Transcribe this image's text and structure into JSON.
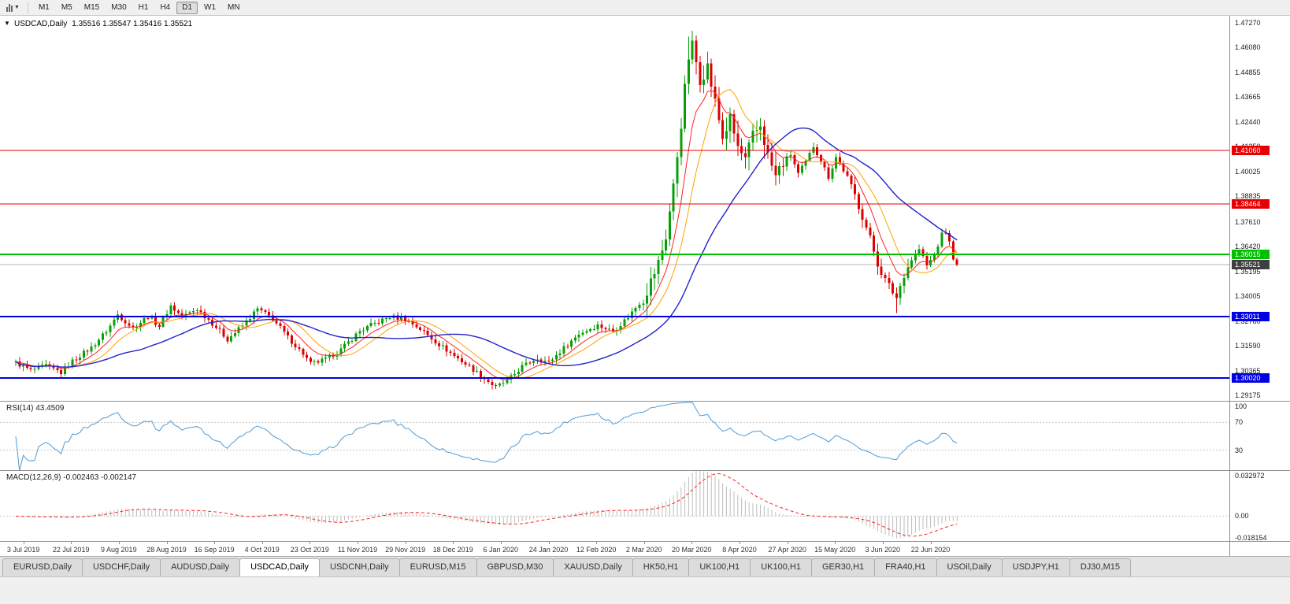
{
  "toolbar": {
    "timeframes": [
      "M1",
      "M5",
      "M15",
      "M30",
      "H1",
      "H4",
      "D1",
      "W1",
      "MN"
    ],
    "active_timeframe": "D1"
  },
  "chart": {
    "header": {
      "symbol_period": "USDCAD,Daily",
      "ohlc": "1.35516 1.35547 1.35416 1.35521"
    },
    "type": "candlestick",
    "y_max": 1.476,
    "y_min": 1.2888,
    "price_ticks": [
      "1.47270",
      "1.46080",
      "1.44855",
      "1.43665",
      "1.42440",
      "1.41250",
      "1.40025",
      "1.38835",
      "1.37610",
      "1.36420",
      "1.35195",
      "1.34005",
      "1.32780",
      "1.31590",
      "1.30365",
      "1.29175"
    ],
    "hlines": [
      {
        "value": 1.4106,
        "label": "1.41060",
        "color": "#e60000",
        "width": 1
      },
      {
        "value": 1.38464,
        "label": "1.38464",
        "color": "#e60000",
        "width": 1
      },
      {
        "value": 1.36015,
        "label": "1.36015",
        "color": "#00c000",
        "width": 2
      },
      {
        "value": 1.33011,
        "label": "1.33011",
        "color": "#0000e0",
        "width": 2
      },
      {
        "value": 1.3002,
        "label": "1.30020",
        "color": "#0000e0",
        "width": 2
      }
    ],
    "current_price": {
      "value": 1.35521,
      "label": "1.35521",
      "badge_color": "#3f3f3f",
      "line_color": "#b6b6b6"
    },
    "colors": {
      "up": "#089f08",
      "down": "#dd0000",
      "background": "#ffffff"
    },
    "ma_lines": [
      {
        "name": "fast-ma",
        "period": 8,
        "method": "ema",
        "color": "#ff2020",
        "width": 1
      },
      {
        "name": "mid-ma",
        "period": 13,
        "method": "sma",
        "color": "#ffa200",
        "width": 1
      },
      {
        "name": "slow-ma",
        "period": 34,
        "method": "sma",
        "color": "#2222cc",
        "width": 1.4
      }
    ],
    "candles": {
      "count": 250,
      "vol_base": 0.0021,
      "vol_zones": [
        [
          166,
          203,
          3.0
        ],
        [
          222,
          236,
          1.8
        ]
      ],
      "keyframes": [
        [
          0,
          1.3075
        ],
        [
          4,
          1.304
        ],
        [
          8,
          1.3062
        ],
        [
          12,
          1.3028
        ],
        [
          15,
          1.3085
        ],
        [
          20,
          1.315
        ],
        [
          24,
          1.323
        ],
        [
          27,
          1.331
        ],
        [
          31,
          1.3245
        ],
        [
          35,
          1.3302
        ],
        [
          38,
          1.3256
        ],
        [
          41,
          1.3352
        ],
        [
          44,
          1.33
        ],
        [
          48,
          1.3338
        ],
        [
          53,
          1.325
        ],
        [
          56,
          1.319
        ],
        [
          60,
          1.3256
        ],
        [
          64,
          1.3338
        ],
        [
          68,
          1.329
        ],
        [
          72,
          1.32
        ],
        [
          76,
          1.312
        ],
        [
          78,
          1.3072
        ],
        [
          82,
          1.3092
        ],
        [
          86,
          1.314
        ],
        [
          91,
          1.323
        ],
        [
          95,
          1.3268
        ],
        [
          99,
          1.33
        ],
        [
          103,
          1.3288
        ],
        [
          107,
          1.324
        ],
        [
          111,
          1.318
        ],
        [
          116,
          1.311
        ],
        [
          120,
          1.3058
        ],
        [
          124,
          1.3
        ],
        [
          127,
          1.2958
        ],
        [
          130,
          1.2988
        ],
        [
          134,
          1.3058
        ],
        [
          138,
          1.31
        ],
        [
          141,
          1.3078
        ],
        [
          145,
          1.3148
        ],
        [
          149,
          1.3218
        ],
        [
          154,
          1.3258
        ],
        [
          158,
          1.323
        ],
        [
          162,
          1.33
        ],
        [
          166,
          1.339
        ],
        [
          168,
          1.347
        ],
        [
          170,
          1.356
        ],
        [
          172,
          1.369
        ],
        [
          174,
          1.393
        ],
        [
          176,
          1.424
        ],
        [
          178,
          1.456
        ],
        [
          179,
          1.4615
        ],
        [
          181,
          1.4455
        ],
        [
          183,
          1.4515
        ],
        [
          185,
          1.434
        ],
        [
          187,
          1.417
        ],
        [
          189,
          1.4255
        ],
        [
          191,
          1.412
        ],
        [
          193,
          1.4055
        ],
        [
          195,
          1.4175
        ],
        [
          197,
          1.423
        ],
        [
          199,
          1.408
        ],
        [
          201,
          1.398
        ],
        [
          203,
          1.4048
        ],
        [
          205,
          1.4088
        ],
        [
          207,
          1.3992
        ],
        [
          209,
          1.405
        ],
        [
          211,
          1.4128
        ],
        [
          213,
          1.4058
        ],
        [
          215,
          1.3978
        ],
        [
          217,
          1.4075
        ],
        [
          220,
          1.3978
        ],
        [
          222,
          1.3888
        ],
        [
          224,
          1.3788
        ],
        [
          226,
          1.3678
        ],
        [
          228,
          1.3558
        ],
        [
          230,
          1.3478
        ],
        [
          232,
          1.342
        ],
        [
          233,
          1.3392
        ],
        [
          235,
          1.3508
        ],
        [
          237,
          1.3578
        ],
        [
          239,
          1.3628
        ],
        [
          241,
          1.3548
        ],
        [
          243,
          1.3598
        ],
        [
          245,
          1.3698
        ],
        [
          246,
          1.3712
        ],
        [
          247,
          1.3658
        ],
        [
          248,
          1.3588
        ],
        [
          249,
          1.3552
        ]
      ],
      "wick_overrides": [
        {
          "i": 127,
          "low": 1.2949
        },
        {
          "i": 178,
          "high": 1.4658
        },
        {
          "i": 179,
          "high": 1.4688
        },
        {
          "i": 233,
          "low": 1.3318
        }
      ]
    }
  },
  "rsi": {
    "label": "RSI(14) 43.4509",
    "period": 14,
    "levels": [
      70,
      30
    ],
    "axis_labels": [
      "100",
      "70",
      "30"
    ],
    "line_color": "#4f9bd5",
    "level_color": "#c8c8c8"
  },
  "macd": {
    "label": "MACD(12,26,9) -0.002463 -0.002147",
    "fast": 12,
    "slow": 26,
    "signal": 9,
    "axis_labels": [
      {
        "text": "0.032972",
        "value": 0.032972
      },
      {
        "text": "0.00",
        "value": 0
      },
      {
        "text": "-0.018154",
        "value": -0.018154
      }
    ],
    "range": {
      "max": 0.0335,
      "min": -0.019
    },
    "hist_color": "#bdbdbd",
    "signal_color": "#ff2020",
    "zero_color": "#c8c8c8"
  },
  "time_axis": {
    "labels": [
      "3 Jul 2019",
      "22 Jul 2019",
      "9 Aug 2019",
      "28 Aug 2019",
      "16 Sep 2019",
      "4 Oct 2019",
      "23 Oct 2019",
      "11 Nov 2019",
      "29 Nov 2019",
      "18 Dec 2019",
      "6 Jan 2020",
      "24 Jan 2020",
      "12 Feb 2020",
      "2 Mar 2020",
      "20 Mar 2020",
      "8 Apr 2020",
      "27 Apr 2020",
      "15 May 2020",
      "3 Jun 2020",
      "22 Jun 2020"
    ]
  },
  "tabs": {
    "active_index": 3,
    "items": [
      "EURUSD,Daily",
      "USDCHF,Daily",
      "AUDUSD,Daily",
      "USDCAD,Daily",
      "USDCNH,Daily",
      "EURUSD,M15",
      "GBPUSD,M30",
      "XAUUSD,Daily",
      "HK50,H1",
      "UK100,H1",
      "UK100,H1",
      "GER30,H1",
      "FRA40,H1",
      "USOil,Daily",
      "USDJPY,H1",
      "DJ30,M15"
    ]
  }
}
